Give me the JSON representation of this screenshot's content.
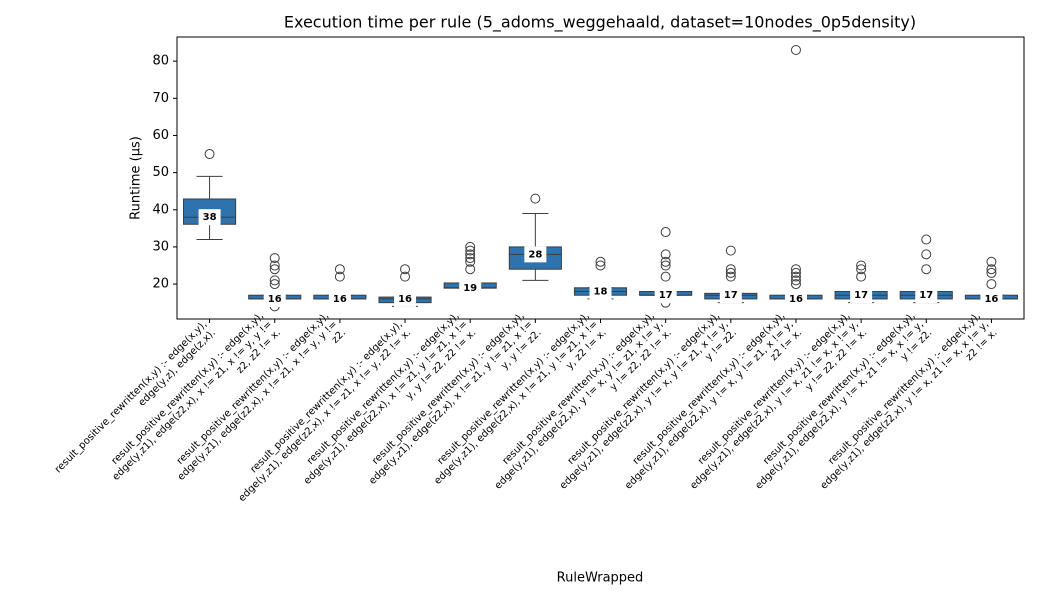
{
  "chart_data": {
    "type": "box",
    "title": "Execution time per rule (5_adoms_weggehaald, dataset=10nodes_0p5density)",
    "x_label": "RuleWrapped",
    "y_label": "Runtime (µs)",
    "color": "#2e73ad",
    "ylim": [
      10.6,
      86.5
    ],
    "yticks": [
      20,
      30,
      40,
      50,
      60,
      70,
      80
    ],
    "categories": [
      [
        "result_positive_rewritten(x,y) :-    edge(x,y),",
        "edge(y,z),    edge(z,x)."
      ],
      [
        "result_positive_rewritten(x,y) :-    edge(x,y),",
        "edge(y,z1),   edge(z2,x),   x != z1,   x != y,   y !=",
        "z2,   z2 != x."
      ],
      [
        "result_positive_rewritten(x,y) :-    edge(x,y),",
        "edge(y,z1),   edge(z2,x),   x != z1,   x != y,   y !=",
        "z2."
      ],
      [
        "result_positive_rewritten(x,y) :-    edge(x,y),",
        "edge(y,z1),   edge(z2,x),   x != z1,   x != y,   z2 != x."
      ],
      [
        "result_positive_rewritten(x,y) :-    edge(x,y),",
        "edge(y,z1),   edge(z2,x),   x != z1,   y != z1,   x !=",
        "y,   y != z2,   z2 != x."
      ],
      [
        "result_positive_rewritten(x,y) :-    edge(x,y),",
        "edge(y,z1),   edge(z2,x),   x != z1,   y != z1,   x !=",
        "y,   y != z2."
      ],
      [
        "result_positive_rewritten(x,y) :-    edge(x,y),",
        "edge(y,z1),   edge(z2,x),   x != z1,   y != z1,   x !=",
        "y,   z2 != x."
      ],
      [
        "result_positive_rewritten(x,y) :-    edge(x,y),",
        "edge(y,z1),   edge(z2,x),   y != x,   y != z1,   x != y,",
        "y != z2,   z2 != x."
      ],
      [
        "result_positive_rewritten(x,y) :-    edge(x,y),",
        "edge(y,z1),   edge(z2,x),   y != x,   y != z1,   x != y,",
        "y != z2."
      ],
      [
        "result_positive_rewritten(x,y) :-    edge(x,y),",
        "edge(y,z1),   edge(z2,x),   y != x,   y != z1,   x != y,",
        "z2 != x."
      ],
      [
        "result_positive_rewritten(x,y) :-    edge(x,y),",
        "edge(y,z1),   edge(z2,x),   y != x,   z1 != x,   x != y,",
        "y != z2,   z2 != x."
      ],
      [
        "result_positive_rewritten(x,y) :-    edge(x,y),",
        "edge(y,z1),   edge(z2,x),   y != x,   z1 != x,   x != y,",
        "y != z2."
      ],
      [
        "result_positive_rewritten(x,y) :-    edge(x,y),",
        "edge(y,z1),   edge(z2,x),   y != x,   z1 != x,   x != y,",
        "z2 != x."
      ]
    ],
    "boxes": [
      {
        "whislo": 32,
        "q1": 36.1,
        "med": 38,
        "q3": 42.9,
        "whishi": 49,
        "fliers": [
          55
        ]
      },
      {
        "whislo": 16,
        "q1": 16,
        "med": 16,
        "q3": 17,
        "whishi": 17,
        "fliers": [
          27,
          25,
          24,
          21,
          20,
          14
        ]
      },
      {
        "whislo": 16,
        "q1": 16,
        "med": 16,
        "q3": 17,
        "whishi": 17,
        "fliers": [
          24,
          22
        ]
      },
      {
        "whislo": 14,
        "q1": 15,
        "med": 16,
        "q3": 16.5,
        "whishi": 16.5,
        "fliers": [
          24,
          22
        ]
      },
      {
        "whislo": 18.9,
        "q1": 18.9,
        "med": 19,
        "q3": 20.3,
        "whishi": 20.3,
        "fliers": [
          30,
          29,
          28,
          27,
          26,
          24
        ]
      },
      {
        "whislo": 21,
        "q1": 24,
        "med": 28,
        "q3": 30,
        "whishi": 39,
        "fliers": [
          43
        ]
      },
      {
        "whislo": 16,
        "q1": 17,
        "med": 18,
        "q3": 19,
        "whishi": 19,
        "fliers": [
          26,
          25
        ]
      },
      {
        "whislo": 17,
        "q1": 17,
        "med": 17,
        "q3": 18,
        "whishi": 18,
        "fliers": [
          34,
          28,
          26,
          25,
          22,
          15
        ]
      },
      {
        "whislo": 15,
        "q1": 16,
        "med": 17,
        "q3": 17.5,
        "whishi": 17.5,
        "fliers": [
          29,
          24,
          23,
          22
        ]
      },
      {
        "whislo": 16,
        "q1": 16,
        "med": 16,
        "q3": 17,
        "whishi": 17,
        "fliers": [
          83,
          24,
          23,
          22,
          21,
          20
        ]
      },
      {
        "whislo": 15,
        "q1": 16,
        "med": 17,
        "q3": 18,
        "whishi": 18,
        "fliers": [
          25,
          24,
          22
        ]
      },
      {
        "whislo": 15,
        "q1": 16,
        "med": 17,
        "q3": 18,
        "whishi": 18,
        "fliers": [
          32,
          28,
          24
        ]
      },
      {
        "whislo": 16,
        "q1": 16,
        "med": 16,
        "q3": 17,
        "whishi": 17,
        "fliers": [
          26,
          24,
          23,
          20
        ]
      }
    ]
  }
}
